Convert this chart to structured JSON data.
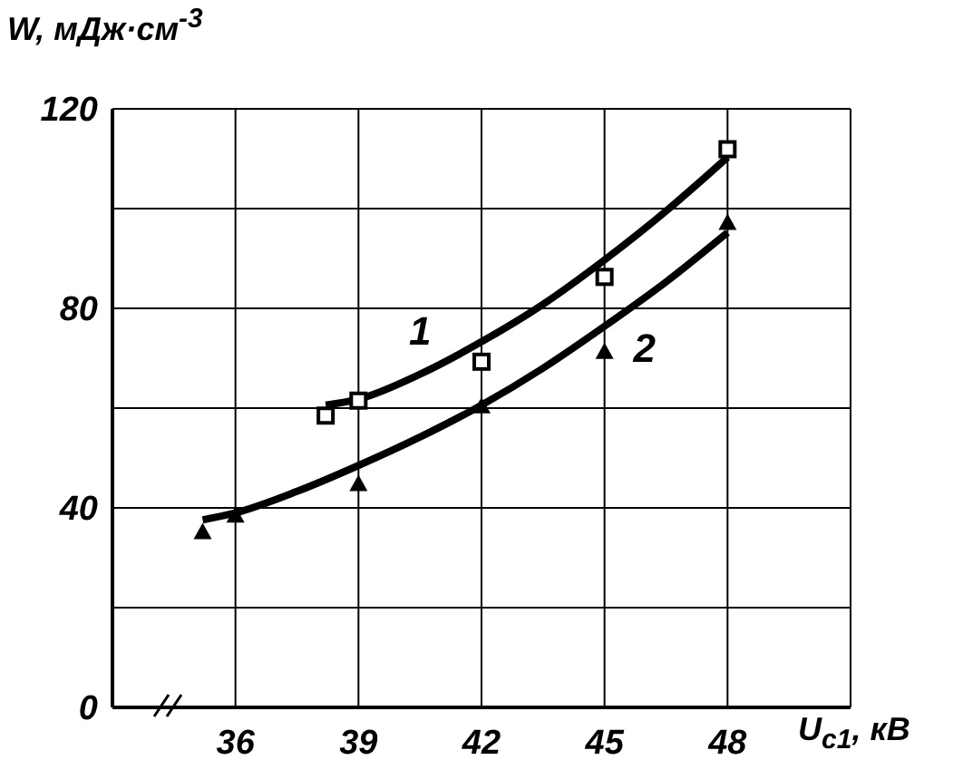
{
  "chart_data": {
    "type": "scatter",
    "xlabel": "U$_{с1}$, кВ",
    "ylabel": "W, мДж·см$^{-3}$",
    "xlim": [
      33,
      51
    ],
    "xticks": [
      36,
      39,
      42,
      45,
      48
    ],
    "ylim": [
      0,
      120
    ],
    "yticks": [
      0,
      {
        "value": 20,
        "label": null
      },
      40,
      {
        "value": 60,
        "label": null
      },
      80,
      {
        "value": 100,
        "label": null
      },
      120
    ],
    "grid": true,
    "series": [
      {
        "marker": "square",
        "color": "#000000",
        "x": [
          38.2,
          39,
          42,
          45,
          48
        ],
        "values": [
          58.5,
          61.5,
          69.3,
          86.3,
          111.9
        ]
      },
      {
        "marker": "triangle",
        "color": "#000000",
        "x": [
          35.2,
          36,
          39,
          42,
          45,
          48
        ],
        "values": [
          35.2,
          38.5,
          44.8,
          60.4,
          71.3,
          97.2
        ]
      },
      {
        "type": "line",
        "name": "1",
        "marker": "none",
        "line_style": "solid",
        "color": "#000000",
        "x": [
          38.2,
          39,
          40.5,
          42,
          43.5,
          45,
          46.5,
          48
        ],
        "values": [
          60.6,
          61.8,
          66.8,
          73.3,
          80.8,
          89.7,
          99.5,
          110.3
        ]
      },
      {
        "type": "line",
        "name": "2",
        "marker": "none",
        "line_style": "solid",
        "color": "#000000",
        "x": [
          35.2,
          36,
          37.5,
          39,
          40.5,
          42,
          43.5,
          45,
          46.5,
          48
        ],
        "values": [
          37.6,
          39,
          43.3,
          48.5,
          54.2,
          60.6,
          68,
          76.4,
          85.3,
          95.2
        ]
      }
    ]
  }
}
